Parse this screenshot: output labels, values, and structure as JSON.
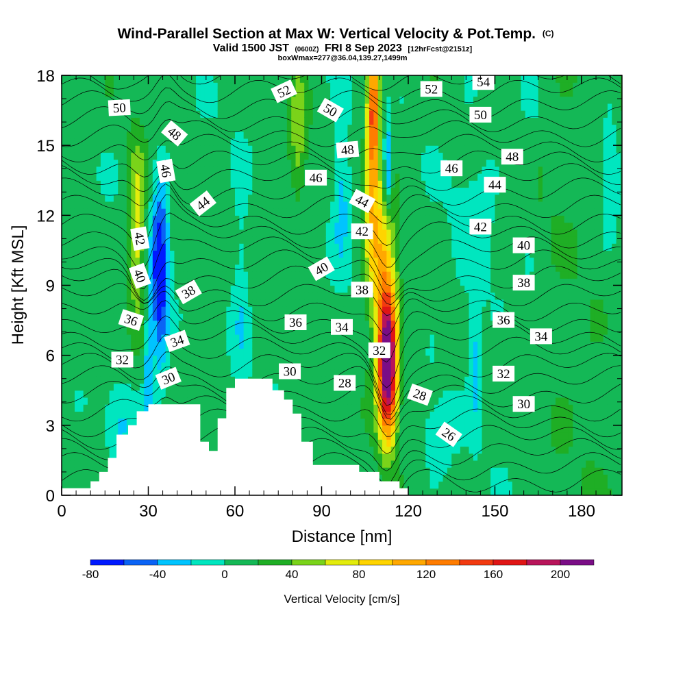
{
  "chart_data": {
    "type": "heatmap",
    "title": "Wind-Parallel Section at Max W: Vertical Velocity & Pot.Temp.",
    "title_suffix": "(C)",
    "subtitle_main": "Valid 1500 JST",
    "subtitle_utc": "(0600Z)",
    "subtitle_date": "FRI 8 Sep 2023",
    "subtitle_fcst": "[12hrFcst@2151z]",
    "subtitle2": "boxWmax=277@36.04,139.27,1499m",
    "xlabel": "Distance [nm]",
    "ylabel": "Height [Kft MSL]",
    "xlim": [
      0,
      194
    ],
    "ylim": [
      0,
      18
    ],
    "xticks": [
      0,
      30,
      60,
      90,
      120,
      150,
      180
    ],
    "yticks": [
      0,
      3,
      6,
      9,
      12,
      15,
      18
    ],
    "colorbar": {
      "label": "Vertical Velocity [cm/s]",
      "tick_values": [
        -80,
        -40,
        0,
        40,
        80,
        120,
        160,
        200
      ],
      "levels": [
        -80,
        -60,
        -40,
        -20,
        0,
        20,
        40,
        60,
        80,
        100,
        120,
        140,
        160,
        180,
        200,
        220
      ],
      "colors": [
        "#0019ff",
        "#0a63f5",
        "#00c4ff",
        "#00e6bf",
        "#14b856",
        "#1fae25",
        "#7ad31a",
        "#e3ec0c",
        "#ffd400",
        "#ffa800",
        "#ff7c00",
        "#f23a10",
        "#e01515",
        "#b8145a",
        "#7a0d86"
      ]
    },
    "vertical_velocity_features": [
      {
        "name": "main-updraft",
        "x": 113,
        "y": 5.5,
        "peak": 210
      },
      {
        "name": "upper-updraft",
        "x": 108,
        "y": 17,
        "peak": 110
      },
      {
        "name": "left-updraft",
        "x": 26,
        "y": 11.5,
        "peak": 75
      },
      {
        "name": "downdraft-1",
        "x": 34,
        "y": 9.5,
        "peak": -75
      },
      {
        "name": "downdraft-2",
        "x": 113,
        "y": 14,
        "peak": -55
      },
      {
        "name": "downdraft-3",
        "x": 30,
        "y": 5,
        "peak": -45
      }
    ],
    "theta_contour_levels": [
      26,
      27,
      28,
      29,
      30,
      31,
      32,
      33,
      34,
      35,
      36,
      37,
      38,
      39,
      40,
      41,
      42,
      43,
      44,
      45,
      46,
      47,
      48,
      49,
      50,
      51,
      52,
      53,
      54
    ],
    "theta_labels": [
      {
        "x": 20,
        "y": 16.6,
        "text": "50",
        "angle": -3
      },
      {
        "x": 39,
        "y": 15.5,
        "text": "48",
        "angle": 40
      },
      {
        "x": 36,
        "y": 13.9,
        "text": "46",
        "angle": 80
      },
      {
        "x": 49,
        "y": 12.5,
        "text": "44",
        "angle": -38
      },
      {
        "x": 27,
        "y": 11.0,
        "text": "42",
        "angle": 80
      },
      {
        "x": 27,
        "y": 9.4,
        "text": "40",
        "angle": 70
      },
      {
        "x": 44,
        "y": 8.7,
        "text": "38",
        "angle": -30
      },
      {
        "x": 24,
        "y": 7.5,
        "text": "36",
        "angle": 18
      },
      {
        "x": 40,
        "y": 6.6,
        "text": "34",
        "angle": -20
      },
      {
        "x": 21,
        "y": 5.8,
        "text": "32",
        "angle": 0
      },
      {
        "x": 37,
        "y": 5.0,
        "text": "30",
        "angle": -22
      },
      {
        "x": 77,
        "y": 17.3,
        "text": "52",
        "angle": -25
      },
      {
        "x": 93,
        "y": 16.5,
        "text": "50",
        "angle": 30
      },
      {
        "x": 99,
        "y": 14.8,
        "text": "48",
        "angle": -5
      },
      {
        "x": 88,
        "y": 13.6,
        "text": "46",
        "angle": 0
      },
      {
        "x": 104,
        "y": 12.6,
        "text": "44",
        "angle": 28
      },
      {
        "x": 104,
        "y": 11.3,
        "text": "42",
        "angle": 0
      },
      {
        "x": 90,
        "y": 9.7,
        "text": "40",
        "angle": -30
      },
      {
        "x": 104,
        "y": 8.8,
        "text": "38",
        "angle": 0
      },
      {
        "x": 81,
        "y": 7.4,
        "text": "36",
        "angle": 0
      },
      {
        "x": 97,
        "y": 7.2,
        "text": "34",
        "angle": 0
      },
      {
        "x": 110,
        "y": 6.2,
        "text": "32",
        "angle": 0
      },
      {
        "x": 79,
        "y": 5.3,
        "text": "30",
        "angle": 0
      },
      {
        "x": 98,
        "y": 4.8,
        "text": "28",
        "angle": 0
      },
      {
        "x": 128,
        "y": 17.4,
        "text": "52",
        "angle": 0
      },
      {
        "x": 146,
        "y": 17.7,
        "text": "54",
        "angle": 0
      },
      {
        "x": 145,
        "y": 16.3,
        "text": "50",
        "angle": 0
      },
      {
        "x": 156,
        "y": 14.5,
        "text": "48",
        "angle": 0
      },
      {
        "x": 135,
        "y": 14.0,
        "text": "46",
        "angle": 0
      },
      {
        "x": 150,
        "y": 13.3,
        "text": "44",
        "angle": 0
      },
      {
        "x": 145,
        "y": 11.5,
        "text": "42",
        "angle": 0
      },
      {
        "x": 160,
        "y": 10.7,
        "text": "40",
        "angle": 0
      },
      {
        "x": 160,
        "y": 9.1,
        "text": "38",
        "angle": 0
      },
      {
        "x": 153,
        "y": 7.5,
        "text": "36",
        "angle": 0
      },
      {
        "x": 166,
        "y": 6.8,
        "text": "34",
        "angle": 0
      },
      {
        "x": 153,
        "y": 5.2,
        "text": "32",
        "angle": 0
      },
      {
        "x": 160,
        "y": 3.9,
        "text": "30",
        "angle": 0
      },
      {
        "x": 124,
        "y": 4.3,
        "text": "28",
        "angle": 20
      },
      {
        "x": 134,
        "y": 2.6,
        "text": "26",
        "angle": 35
      }
    ],
    "terrain_profile": [
      [
        0,
        0.3
      ],
      [
        10,
        0.3
      ],
      [
        10,
        0.6
      ],
      [
        13,
        0.6
      ],
      [
        13,
        1.0
      ],
      [
        16,
        1.0
      ],
      [
        16,
        1.6
      ],
      [
        19,
        1.6
      ],
      [
        19,
        2.6
      ],
      [
        23,
        2.6
      ],
      [
        23,
        3.0
      ],
      [
        26,
        3.0
      ],
      [
        26,
        3.6
      ],
      [
        30,
        3.6
      ],
      [
        30,
        3.9
      ],
      [
        48,
        3.9
      ],
      [
        48,
        2.3
      ],
      [
        51,
        2.3
      ],
      [
        51,
        1.9
      ],
      [
        54,
        1.9
      ],
      [
        54,
        3.3
      ],
      [
        57,
        3.3
      ],
      [
        57,
        4.6
      ],
      [
        60,
        4.6
      ],
      [
        60,
        5.0
      ],
      [
        73,
        5.0
      ],
      [
        73,
        4.5
      ],
      [
        77,
        4.5
      ],
      [
        77,
        4.1
      ],
      [
        80,
        4.1
      ],
      [
        80,
        3.5
      ],
      [
        83,
        3.5
      ],
      [
        83,
        2.3
      ],
      [
        87,
        2.3
      ],
      [
        87,
        1.3
      ],
      [
        103,
        1.3
      ],
      [
        103,
        1.0
      ],
      [
        110,
        1.0
      ],
      [
        110,
        0.6
      ],
      [
        117,
        0.6
      ],
      [
        117,
        0.3
      ],
      [
        120,
        0.3
      ],
      [
        120,
        0
      ],
      [
        0,
        0
      ]
    ]
  }
}
